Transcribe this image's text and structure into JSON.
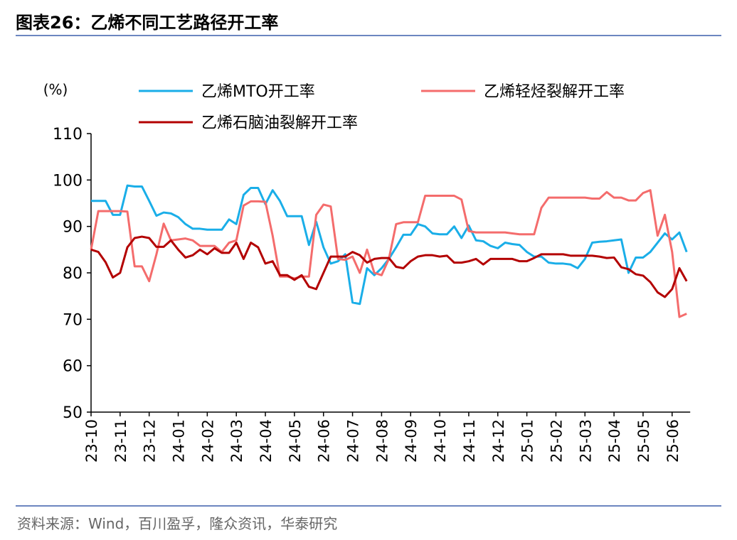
{
  "chart_data": {
    "type": "line",
    "title": "图表26：乙烯不同工艺路径开工率",
    "y_label": "(%)",
    "source": "资料来源：Wind，百川盈孚，隆众资讯，华泰研究",
    "ylim": [
      50,
      110
    ],
    "yticks": [
      50,
      60,
      70,
      80,
      90,
      100,
      110
    ],
    "categories": [
      "23-10",
      null,
      null,
      null,
      "23-11",
      null,
      null,
      null,
      "23-12",
      null,
      null,
      null,
      "24-01",
      null,
      null,
      null,
      "24-02",
      null,
      null,
      null,
      "24-03",
      null,
      null,
      null,
      "24-04",
      null,
      null,
      null,
      "24-05",
      null,
      null,
      null,
      "24-06",
      null,
      null,
      null,
      "24-07",
      null,
      null,
      null,
      "24-08",
      null,
      null,
      null,
      "24-09",
      null,
      null,
      null,
      "24-10",
      null,
      null,
      null,
      "24-11",
      null,
      null,
      null,
      "24-12",
      null,
      null,
      null,
      "25-01",
      null,
      null,
      null,
      "25-02",
      null,
      null,
      null,
      "25-03",
      null,
      null,
      null,
      "25-04",
      null,
      null,
      null,
      "25-05",
      null,
      null,
      null,
      "25-06",
      null,
      null
    ],
    "series": [
      {
        "name": "乙烯MTO开工率",
        "color": "#1aaee8",
        "values": [
          95.5,
          95.5,
          95.5,
          92.5,
          92.5,
          98.8,
          98.6,
          98.6,
          95.5,
          92.3,
          93,
          92.8,
          92,
          90.5,
          89.5,
          89.5,
          89.3,
          89.3,
          89.3,
          91.5,
          90.5,
          96.8,
          98.3,
          98.3,
          94.8,
          97.8,
          95.5,
          92.2,
          92.2,
          92.2,
          86,
          91,
          85.5,
          82,
          82.5,
          84,
          73.6,
          73.3,
          81,
          79.5,
          81,
          83,
          85.5,
          88.2,
          88.2,
          90.5,
          90,
          88.5,
          88.3,
          88.3,
          90,
          87.5,
          90.2,
          87,
          86.8,
          85.8,
          85.3,
          86.5,
          86.2,
          86,
          84.5,
          83.5,
          83.5,
          82.2,
          82,
          82,
          81.8,
          81,
          83,
          86.5,
          86.7,
          86.8,
          87,
          87.2,
          80,
          83.3,
          83.3,
          84.5,
          86.5,
          88.5,
          87.2,
          88.7,
          84.5
        ]
      },
      {
        "name": "乙烯轻烃裂解开工率",
        "color": "#f46c6c",
        "values": [
          85,
          93.3,
          93.3,
          93.3,
          93.3,
          93.2,
          81.4,
          81.4,
          78.2,
          84,
          90.6,
          87,
          87.2,
          87.4,
          87,
          85.8,
          85.8,
          85.8,
          84.5,
          86.5,
          87,
          94.5,
          95.4,
          95.4,
          95.3,
          88,
          79.2,
          79.2,
          78.8,
          79.2,
          79.2,
          92.5,
          94.7,
          94.3,
          83,
          82.8,
          83.5,
          80,
          85,
          80,
          79.5,
          83,
          90.5,
          90.9,
          90.9,
          90.9,
          96.6,
          96.6,
          96.6,
          96.6,
          96.6,
          95.8,
          89,
          88.7,
          88.7,
          88.7,
          88.7,
          88.7,
          88.5,
          88.3,
          88.3,
          88.3,
          94,
          96.2,
          96.2,
          96.2,
          96.2,
          96.2,
          96.2,
          96,
          96,
          97.4,
          96.2,
          96.2,
          95.6,
          95.6,
          97.2,
          97.8,
          88,
          92.5,
          84.5,
          70.5,
          71.2
        ]
      },
      {
        "name": "乙烯石脑油裂解开工率",
        "color": "#b30000",
        "values": [
          85,
          84.5,
          82.3,
          79,
          80,
          85.5,
          87.5,
          87.8,
          87.5,
          85.6,
          85.6,
          87,
          85,
          83.3,
          83.8,
          85,
          84,
          85.3,
          84.3,
          84.3,
          86.5,
          83,
          86.5,
          85.5,
          82,
          82.5,
          79.5,
          79.5,
          78.5,
          79.5,
          77,
          76.5,
          80,
          83.5,
          83.5,
          83.5,
          84.5,
          83.8,
          82.2,
          83,
          83.2,
          83.2,
          81.3,
          81,
          82.5,
          83.5,
          83.8,
          83.8,
          83.5,
          83.7,
          82.2,
          82.2,
          82.5,
          83,
          81.8,
          83,
          83,
          83,
          83,
          82.5,
          82.5,
          83.2,
          84,
          84,
          84,
          84,
          83.7,
          83.7,
          83.7,
          83.7,
          83.5,
          83.2,
          83.3,
          81.2,
          80.8,
          79.7,
          79.4,
          78,
          75.8,
          74.8,
          76.5,
          81,
          78.2
        ]
      }
    ]
  }
}
